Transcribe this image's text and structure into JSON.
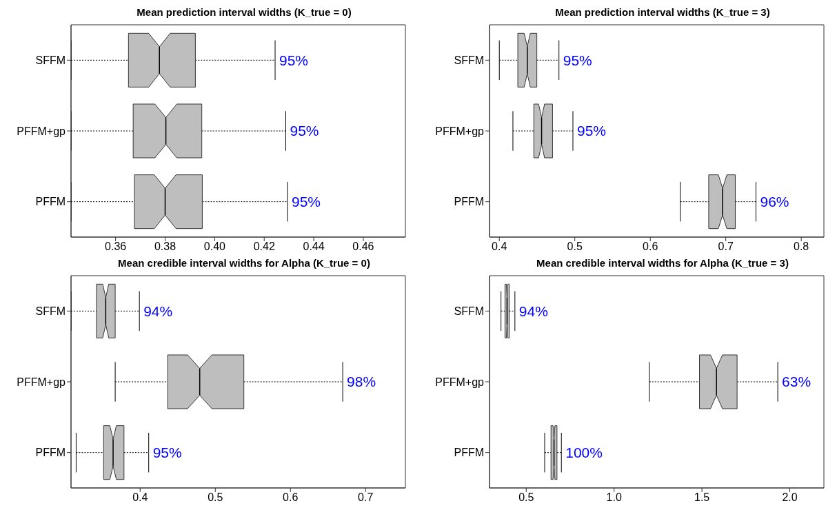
{
  "chart_data": [
    {
      "type": "box",
      "orientation": "horizontal",
      "title": "Mean prediction interval widths (K_true = 0)",
      "categories": [
        "SFFM",
        "PFFM+gp",
        "PFFM"
      ],
      "color": "#bebebe",
      "boxes": [
        {
          "low": 0.342,
          "q1": 0.3652,
          "median": 0.3777,
          "q3": 0.3922,
          "high": 0.4244
        },
        {
          "low": 0.342,
          "q1": 0.3671,
          "median": 0.3803,
          "q3": 0.3948,
          "high": 0.4287
        },
        {
          "low": 0.342,
          "q1": 0.3676,
          "median": 0.38,
          "q3": 0.395,
          "high": 0.4294
        }
      ],
      "xlim": [
        0.342,
        0.477
      ],
      "xticks": [
        0.36,
        0.38,
        {
          "value": 0.4,
          "label": "0.40"
        },
        0.42,
        0.44,
        0.46
      ],
      "annotations": [
        {
          "text": "95%",
          "x": 0.4244,
          "y": "SFFM"
        },
        {
          "text": "95%",
          "x": 0.4287,
          "y": "PFFM+gp"
        },
        {
          "text": "95%",
          "x": 0.4294,
          "y": "PFFM"
        }
      ]
    },
    {
      "type": "box",
      "orientation": "horizontal",
      "title": "Mean prediction interval widths (K_true = 3)",
      "categories": [
        "SFFM",
        "PFFM+gp",
        "PFFM"
      ],
      "color": "#bebebe",
      "boxes": [
        {
          "low": 0.4,
          "q1": 0.4245,
          "median": 0.437,
          "q3": 0.4497,
          "high": 0.479
        },
        {
          "low": 0.418,
          "q1": 0.4457,
          "median": 0.456,
          "q3": 0.4705,
          "high": 0.4975
        },
        {
          "low": 0.6397,
          "q1": 0.6774,
          "median": 0.6958,
          "q3": 0.7126,
          "high": 0.74
        }
      ],
      "xlim": [
        0.387,
        0.83
      ],
      "xticks": [
        0.4,
        0.5,
        0.6,
        0.7,
        0.8
      ],
      "annotations": [
        {
          "text": "95%",
          "x": 0.479,
          "y": "SFFM"
        },
        {
          "text": "95%",
          "x": 0.4975,
          "y": "PFFM+gp"
        },
        {
          "text": "96%",
          "x": 0.74,
          "y": "PFFM"
        }
      ]
    },
    {
      "type": "box",
      "orientation": "horizontal",
      "title": "Mean credible interval widths for Alpha (K_true = 0)",
      "categories": [
        "SFFM",
        "PFFM+gp",
        "PFFM"
      ],
      "color": "#bebebe",
      "boxes": [
        {
          "low": 0.308,
          "q1": 0.3419,
          "median": 0.3542,
          "q3": 0.3668,
          "high": 0.399
        },
        {
          "low": 0.3668,
          "q1": 0.4366,
          "median": 0.4793,
          "q3": 0.538,
          "high": 0.6696
        },
        {
          "low": 0.3148,
          "q1": 0.3514,
          "median": 0.364,
          "q3": 0.3785,
          "high": 0.4114
        }
      ],
      "xlim": [
        0.308,
        0.753
      ],
      "xticks": [
        0.4,
        0.5,
        0.6,
        0.7
      ],
      "annotations": [
        {
          "text": "94%",
          "x": 0.399,
          "y": "SFFM"
        },
        {
          "text": "98%",
          "x": 0.6696,
          "y": "PFFM+gp"
        },
        {
          "text": "95%",
          "x": 0.4114,
          "y": "PFFM"
        }
      ]
    },
    {
      "type": "box",
      "orientation": "horizontal",
      "title": "Mean credible interval widths for Alpha (K_true = 3)",
      "categories": [
        "SFFM",
        "PFFM+gp",
        "PFFM"
      ],
      "color": "#bebebe",
      "boxes": [
        {
          "low": 0.3564,
          "q1": 0.379,
          "median": 0.391,
          "q3": 0.403,
          "high": 0.4355
        },
        {
          "low": 1.2006,
          "q1": 1.486,
          "median": 1.5826,
          "q3": 1.7,
          "high": 1.9316
        },
        {
          "low": 0.605,
          "q1": 0.641,
          "median": 0.658,
          "q3": 0.675,
          "high": 0.7
        }
      ],
      "xlim": [
        0.291,
        2.194
      ],
      "xticks": [
        0.5,
        {
          "value": 1,
          "label": "1.0"
        },
        1.5,
        {
          "value": 2,
          "label": "2.0"
        }
      ],
      "annotations": [
        {
          "text": "94%",
          "x": 0.4355,
          "y": "SFFM"
        },
        {
          "text": "63%",
          "x": 1.9316,
          "y": "PFFM+gp"
        },
        {
          "text": "100%",
          "x": 0.7,
          "y": "PFFM"
        }
      ]
    }
  ]
}
